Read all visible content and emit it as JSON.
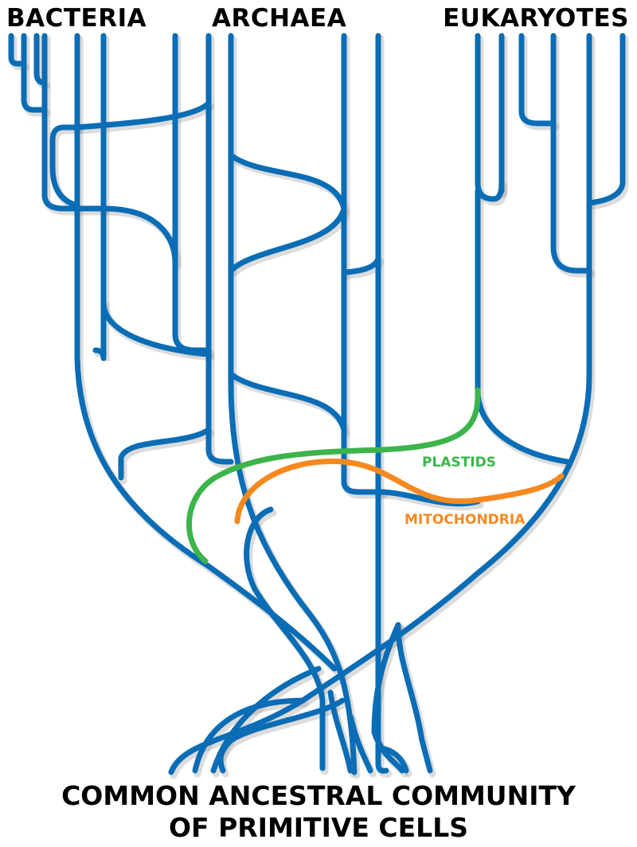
{
  "domains": {
    "bacteria": "BACTERIA",
    "archaea": "ARCHAEA",
    "eukaryotes": "EUKARYOTES"
  },
  "transfers": {
    "plastids": "PLASTIDS",
    "mitochondria": "MITOCHONDRIA"
  },
  "root": {
    "line1": "COMMON ANCESTRAL COMMUNITY",
    "line2": "OF PRIMITIVE CELLS"
  },
  "colors": {
    "branch": "#0a6db5",
    "plastids": "#3cb44b",
    "mitochondria": "#f5891f",
    "text": "#000000"
  }
}
